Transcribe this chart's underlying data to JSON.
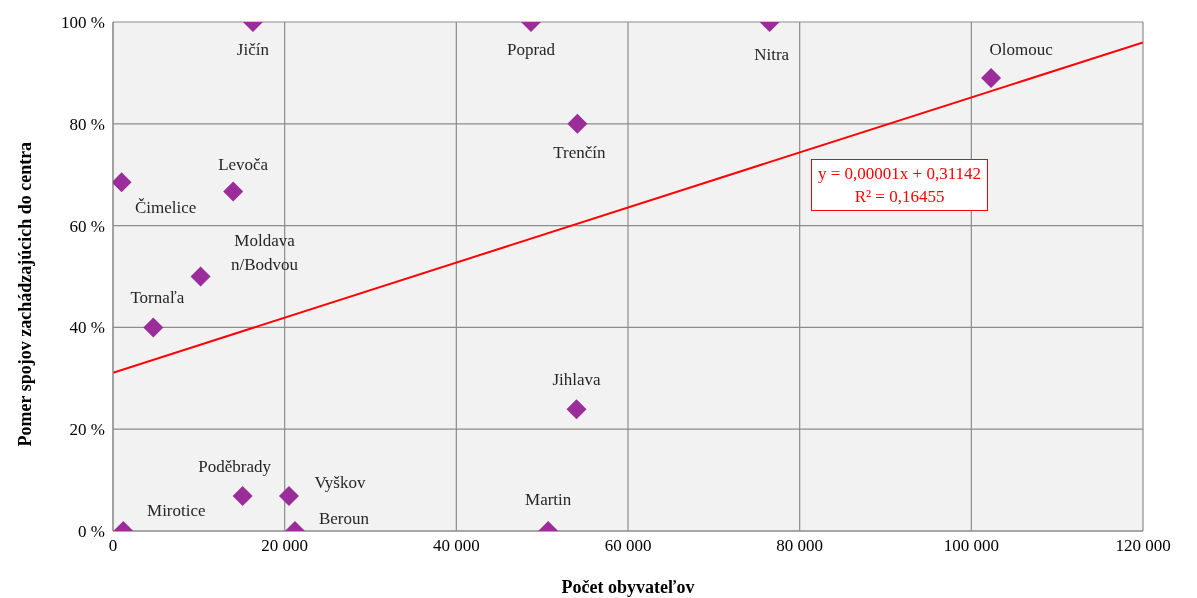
{
  "chart_data": {
    "type": "scatter",
    "xlabel": "Počet obyvateľov",
    "ylabel": "Pomer spojov zachádzajúcich do centra",
    "marker": "diamond",
    "grid": true,
    "xlim": [
      0,
      120000
    ],
    "xticks": [
      {
        "value": 0,
        "label": "0"
      },
      {
        "value": 20000,
        "label": "20 000"
      },
      {
        "value": 40000,
        "label": "40 000"
      },
      {
        "value": 60000,
        "label": "60 000"
      },
      {
        "value": 80000,
        "label": "80 000"
      },
      {
        "value": 100000,
        "label": "100 000"
      },
      {
        "value": 120000,
        "label": "120 000"
      }
    ],
    "ylim": [
      0,
      100
    ],
    "yticks": [
      {
        "value": 0,
        "label": "0 %"
      },
      {
        "value": 20,
        "label": "20 %"
      },
      {
        "value": 40,
        "label": "40 %"
      },
      {
        "value": 60,
        "label": "60 %"
      },
      {
        "value": 80,
        "label": "80 %"
      },
      {
        "value": 100,
        "label": "100 %"
      }
    ],
    "series": [
      {
        "color": "#9b2d9b",
        "x": [
          1000,
          1200,
          4700,
          10200,
          14000,
          16300,
          15100,
          20500,
          21200,
          48700,
          50700,
          54100,
          54000,
          76500,
          102300
        ],
        "values": [
          68.5,
          0,
          40,
          50,
          66.7,
          100,
          6.9,
          6.9,
          0,
          100,
          0,
          80,
          23.9,
          100,
          89
        ]
      },
      {
        "type": "line",
        "marker": "none",
        "color": "#ff0000",
        "x": [
          0,
          120000
        ],
        "values": [
          31.1,
          96
        ]
      }
    ],
    "annotations": [
      {
        "text": "Čimelice",
        "x": 1000,
        "y": 68.5
      },
      {
        "text": "Mirotice",
        "x": 1200,
        "y": 0
      },
      {
        "text": "Tornaľa",
        "x": 4700,
        "y": 40
      },
      {
        "text": "Moldava n/Bodvou",
        "x": 10200,
        "y": 50
      },
      {
        "text": "Levoča",
        "x": 14000,
        "y": 66.7
      },
      {
        "text": "Jičín",
        "x": 16300,
        "y": 100
      },
      {
        "text": "Poděbrady",
        "x": 15100,
        "y": 6.9
      },
      {
        "text": "Vyškov",
        "x": 20500,
        "y": 6.9
      },
      {
        "text": "Beroun",
        "x": 21200,
        "y": 0
      },
      {
        "text": "Poprad",
        "x": 48700,
        "y": 100
      },
      {
        "text": "Martin",
        "x": 50700,
        "y": 0
      },
      {
        "text": "Trenčín",
        "x": 54100,
        "y": 80
      },
      {
        "text": "Jihlava",
        "x": 54000,
        "y": 23.9
      },
      {
        "text": "Nitra",
        "x": 76500,
        "y": 100
      },
      {
        "text": "Olomouc",
        "x": 102300,
        "y": 89
      },
      "y = 0,00001x + 0,31142",
      "R² = 0,16455"
    ]
  }
}
